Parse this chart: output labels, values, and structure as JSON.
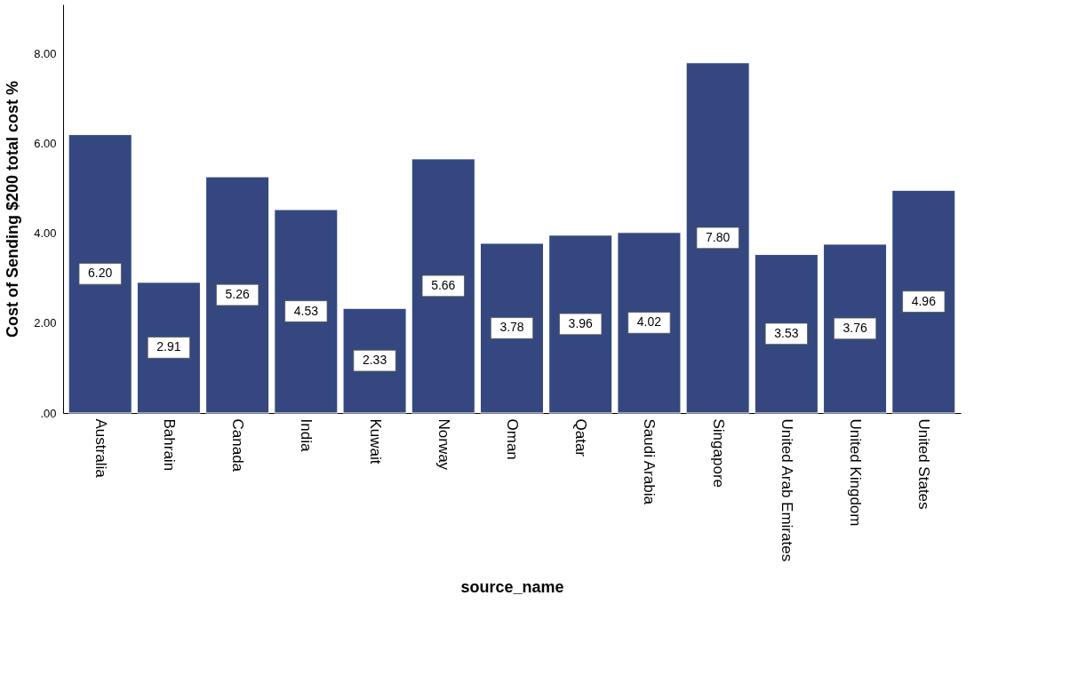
{
  "chart_data": {
    "type": "bar",
    "xlabel": "source_name",
    "ylabel": "Cost of Sending $200 total cost %",
    "categories": [
      "Australia",
      "Bahrain",
      "Canada",
      "India",
      "Kuwait",
      "Norway",
      "Oman",
      "Qatar",
      "Saudi Arabia",
      "Singapore",
      "United Arab Emirates",
      "United Kingdom",
      "United States"
    ],
    "values": [
      6.2,
      2.91,
      5.26,
      4.53,
      2.33,
      5.66,
      3.78,
      3.96,
      4.02,
      7.8,
      3.53,
      3.76,
      4.96
    ],
    "value_labels": [
      "6.20",
      "2.91",
      "5.26",
      "4.53",
      "2.33",
      "5.66",
      "3.78",
      "3.96",
      "4.02",
      "7.80",
      "3.53",
      "3.76",
      "4.96"
    ],
    "color": "#34487f",
    "ylim": [
      0,
      9.1
    ],
    "yticks": [
      {
        "value": 0,
        "label": ".00"
      },
      {
        "value": 2,
        "label": "2.00"
      },
      {
        "value": 4,
        "label": "4.00"
      },
      {
        "value": 6,
        "label": "6.00"
      },
      {
        "value": 8,
        "label": "8.00"
      }
    ],
    "grid": false
  }
}
